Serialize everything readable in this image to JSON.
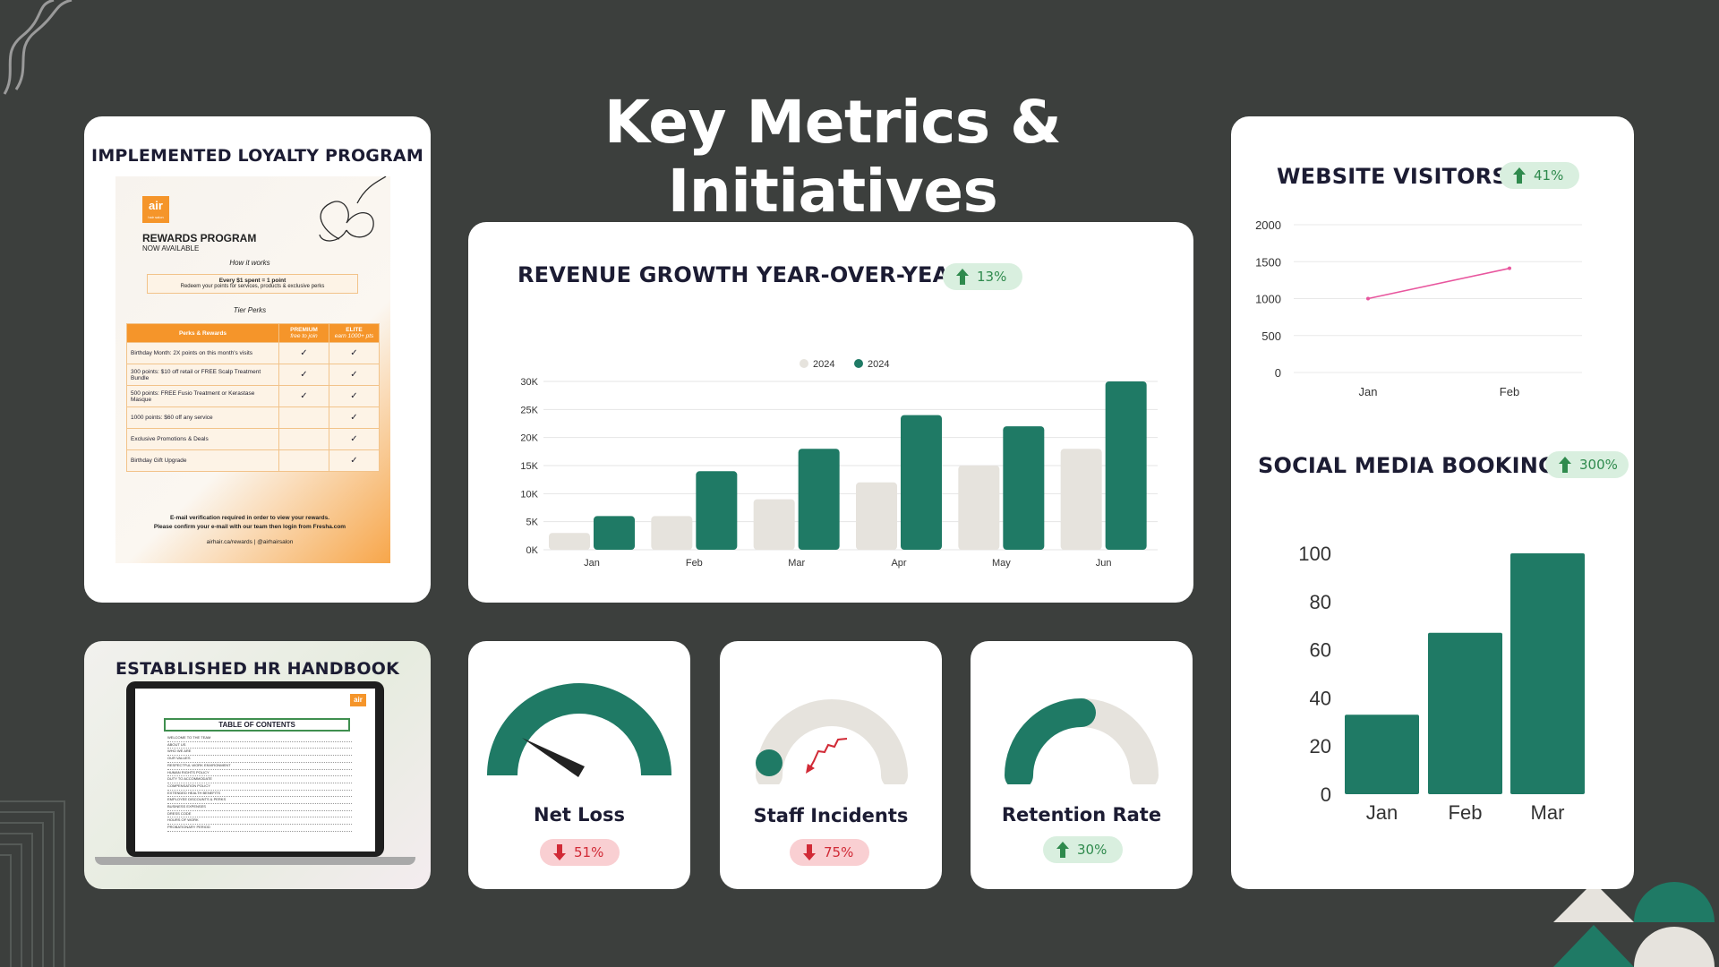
{
  "title": "Key Metrics & Initiatives",
  "colors": {
    "green": "#1f7a65",
    "beige": "#e6e3dd",
    "pink": "#e8569e",
    "up": "#2f8a4d",
    "down": "#d12a36"
  },
  "loyalty": {
    "title": "IMPLEMENTED LOYALTY PROGRAM",
    "flyer": {
      "logo": "air",
      "logo_sub": "hair salon",
      "heading": "REWARDS PROGRAM",
      "subheading": "NOW AVAILABLE",
      "how": "How it works",
      "rule_line1": "Every $1 spent  = 1 point",
      "rule_line2": "Redeem your points for services, products & exclusive perks",
      "tier": "Tier Perks",
      "col_perks": "Perks & Rewards",
      "col_premium": "PREMIUM",
      "col_premium_sub": "free to join",
      "col_elite": "ELITE",
      "col_elite_sub": "earn 1000+ pts",
      "rows": [
        {
          "text": "Birthday Month: 2X points on this month's visits",
          "premium": "✓",
          "elite": "✓"
        },
        {
          "text": "300 points: $10 off retail or FREE Scalp Treatment Bundle",
          "premium": "✓",
          "elite": "✓"
        },
        {
          "text": "500 points: FREE Fusio Treatment or Kerastase Masque",
          "premium": "✓",
          "elite": "✓"
        },
        {
          "text": "1000 points: $60 off any service",
          "premium": "",
          "elite": "✓"
        },
        {
          "text": "Exclusive Promotions & Deals",
          "premium": "",
          "elite": "✓"
        },
        {
          "text": "Birthday Gift Upgrade",
          "premium": "",
          "elite": "✓"
        }
      ],
      "footer1": "E-mail verification required in order to view your rewards.",
      "footer2": "Please confirm your e-mail with our team then login from Fresha.com",
      "footer3": "airhair.ca/rewards | @airhairsalon"
    }
  },
  "hr": {
    "title": "ESTABLISHED HR HANDBOOK GUIDE",
    "logo": "air",
    "toc_title": "TABLE OF CONTENTS",
    "toc_items": [
      "WELCOME TO THE TEAM",
      "ABOUT US",
      "WHO WE ARE",
      "OUR VALUES",
      "RESPECTFUL WORK ENVIRONMENT",
      "HUMAN RIGHTS POLICY",
      "DUTY TO ACCOMMODATE",
      "COMPENSATION POLICY",
      "EXTENDED HEALTH BENEFITS",
      "EMPLOYEE DISCOUNTS & PERKS",
      "BUSINESS EXPENSES",
      "DRESS CODE",
      "HOURS OF WORK",
      "PROBATIONARY PERIOD"
    ]
  },
  "revenue": {
    "title": "REVENUE GROWTH YEAR-OVER-YEAR",
    "badge": "13%"
  },
  "net_loss": {
    "label": "Net Loss",
    "badge": "51%",
    "value": 0.1
  },
  "staff_incidents": {
    "label": "Staff Incidents",
    "badge": "75%",
    "value": 0.0
  },
  "retention": {
    "label": "Retention Rate",
    "badge": "30%",
    "value": 0.5
  },
  "visitors": {
    "title": "WEBSITE VISITORS",
    "badge": "41%"
  },
  "bookings": {
    "title": "SOCIAL MEDIA BOOKINGS",
    "badge": "300%"
  },
  "chart_data": [
    {
      "type": "bar",
      "title": "REVENUE GROWTH YEAR-OVER-YEAR",
      "categories": [
        "Jan",
        "Feb",
        "Mar",
        "Apr",
        "May",
        "Jun"
      ],
      "series": [
        {
          "name": "2024",
          "values": [
            3000,
            6000,
            9000,
            12000,
            15000,
            18000
          ]
        },
        {
          "name": "2024",
          "values": [
            6000,
            14000,
            18000,
            24000,
            22000,
            30000
          ]
        }
      ],
      "ylim": [
        0,
        30000
      ],
      "yticks": [
        "0K",
        "5K",
        "10K",
        "15K",
        "20K",
        "25K",
        "30K"
      ],
      "legend": "top-center",
      "grid": true
    },
    {
      "type": "line",
      "title": "WEBSITE VISITORS",
      "categories": [
        "Jan",
        "Feb"
      ],
      "values": [
        1000,
        1410
      ],
      "ylim": [
        0,
        2000
      ],
      "yticks": [
        "0",
        "500",
        "1000",
        "1500",
        "2000"
      ],
      "grid": true
    },
    {
      "type": "bar",
      "title": "SOCIAL MEDIA BOOKINGS",
      "categories": [
        "Jan",
        "Feb",
        "Mar"
      ],
      "values": [
        33,
        67,
        100
      ],
      "ylim": [
        0,
        100
      ],
      "yticks": [
        "0",
        "20",
        "40",
        "60",
        "80",
        "100"
      ],
      "grid": false
    }
  ]
}
